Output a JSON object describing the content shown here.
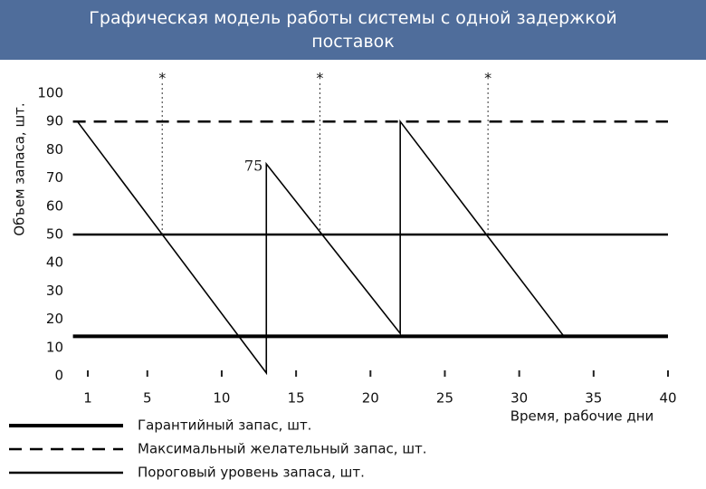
{
  "chart_data": {
    "type": "line",
    "title": "Графическая модель работы системы с одной задержкой поставок",
    "y_label": "Объем запаса, шт.",
    "x_label": "Время, рабочие дни",
    "xlim": [
      0,
      40
    ],
    "ylim": [
      0,
      100
    ],
    "xticks": [
      1,
      5,
      10,
      15,
      20,
      25,
      30,
      35,
      40
    ],
    "yticks": [
      0,
      10,
      20,
      30,
      40,
      50,
      60,
      70,
      80,
      90,
      100
    ],
    "series": [
      {
        "name": "Гарантийный запас, шт.",
        "color": "#000000",
        "line_style": "thick",
        "x": [
          0,
          40
        ],
        "values": [
          14,
          14
        ]
      },
      {
        "name": "Максимальный желательный запас, шт.",
        "color": "#000000",
        "line_style": "dashed",
        "x": [
          0,
          40
        ],
        "values": [
          90,
          90
        ]
      },
      {
        "name": "Пороговый уровень запаса, шт.",
        "color": "#000000",
        "line_style": "solid",
        "x": [
          0,
          40
        ],
        "values": [
          50,
          50
        ]
      }
    ],
    "inventory": {
      "color": "#000000",
      "x": [
        0.3,
        13,
        13,
        22,
        22,
        33
      ],
      "values": [
        90,
        1,
        75,
        15,
        90,
        14
      ]
    },
    "annotations": [
      {
        "text": "75",
        "x": 13,
        "y": 75
      }
    ],
    "markers": [
      {
        "label": "*",
        "x": 6
      },
      {
        "label": "*",
        "x": 16.6
      },
      {
        "label": "*",
        "x": 27.9
      }
    ]
  }
}
